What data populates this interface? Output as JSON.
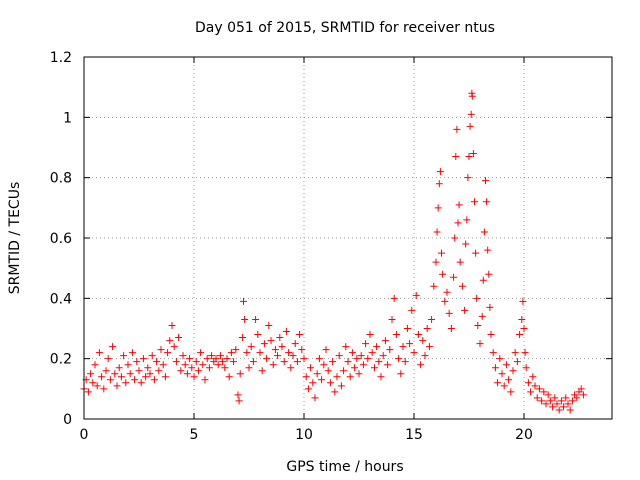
{
  "chart_data": {
    "type": "scatter",
    "title": "Day 051 of 2015, SRMTID for receiver ntus",
    "xlabel": "GPS time / hours",
    "ylabel": "SRMTID / TECUs",
    "xlim": [
      0,
      24
    ],
    "ylim": [
      0,
      1.2
    ],
    "xticks": [
      0,
      5,
      10,
      15,
      20
    ],
    "xtick_labels": [
      "0",
      "5",
      "10",
      "15",
      "20"
    ],
    "yticks": [
      0,
      0.2,
      0.4,
      0.6,
      0.8,
      1,
      1.2
    ],
    "ytick_labels": [
      "0",
      "0.2",
      "0.4",
      "0.6",
      "0.8",
      "1",
      "1.2"
    ],
    "grid": true,
    "marker": "+",
    "color": "#ff0000",
    "x_range_of_data": [
      0,
      22.7
    ],
    "series": [
      {
        "name": "SRMTID",
        "points": [
          [
            0.0,
            0.1
          ],
          [
            0.1,
            0.13
          ],
          [
            0.2,
            0.09
          ],
          [
            0.3,
            0.15
          ],
          [
            0.4,
            0.12
          ],
          [
            0.5,
            0.18
          ],
          [
            0.6,
            0.11
          ],
          [
            0.7,
            0.22
          ],
          [
            0.8,
            0.14
          ],
          [
            0.9,
            0.1
          ],
          [
            1.0,
            0.16
          ],
          [
            1.1,
            0.2
          ],
          [
            1.2,
            0.13
          ],
          [
            1.3,
            0.24
          ],
          [
            1.4,
            0.15
          ],
          [
            1.5,
            0.11
          ],
          [
            1.6,
            0.17
          ],
          [
            1.7,
            0.14
          ],
          [
            1.8,
            0.21
          ],
          [
            1.9,
            0.12
          ],
          [
            2.0,
            0.18
          ],
          [
            2.1,
            0.15
          ],
          [
            2.2,
            0.22
          ],
          [
            2.3,
            0.13
          ],
          [
            2.4,
            0.19
          ],
          [
            2.5,
            0.16
          ],
          [
            2.6,
            0.12
          ],
          [
            2.7,
            0.2
          ],
          [
            2.8,
            0.14
          ],
          [
            2.9,
            0.17
          ],
          [
            3.0,
            0.15
          ],
          [
            3.1,
            0.21
          ],
          [
            3.2,
            0.13
          ],
          [
            3.3,
            0.19
          ],
          [
            3.4,
            0.16
          ],
          [
            3.5,
            0.23
          ],
          [
            3.6,
            0.18
          ],
          [
            3.7,
            0.14
          ],
          [
            3.8,
            0.22
          ],
          [
            3.9,
            0.26
          ],
          [
            4.0,
            0.31
          ],
          [
            4.1,
            0.24
          ],
          [
            4.2,
            0.19
          ],
          [
            4.3,
            0.27
          ],
          [
            4.4,
            0.16
          ],
          [
            4.5,
            0.21
          ],
          [
            4.6,
            0.18
          ],
          [
            4.7,
            0.15
          ],
          [
            4.8,
            0.2
          ],
          [
            4.9,
            0.17
          ],
          [
            5.0,
            0.14
          ],
          [
            5.1,
            0.19
          ],
          [
            5.2,
            0.16
          ],
          [
            5.3,
            0.22
          ],
          [
            5.4,
            0.18
          ],
          [
            5.5,
            0.13
          ],
          [
            5.6,
            0.2
          ],
          [
            5.7,
            0.17
          ],
          [
            5.8,
            0.21
          ],
          [
            5.9,
            0.19
          ],
          [
            6.0,
            0.2
          ],
          [
            6.1,
            0.18
          ],
          [
            6.2,
            0.21
          ],
          [
            6.3,
            0.19
          ],
          [
            6.4,
            0.17
          ],
          [
            6.5,
            0.2
          ],
          [
            6.6,
            0.14
          ],
          [
            6.7,
            0.22
          ],
          [
            6.8,
            0.19
          ],
          [
            6.9,
            0.23
          ],
          [
            7.0,
            0.08
          ],
          [
            7.05,
            0.06
          ],
          [
            7.1,
            0.15
          ],
          [
            7.2,
            0.27
          ],
          [
            7.25,
            0.39
          ],
          [
            7.3,
            0.33
          ],
          [
            7.4,
            0.22
          ],
          [
            7.5,
            0.17
          ],
          [
            7.6,
            0.24
          ],
          [
            7.7,
            0.19
          ],
          [
            7.8,
            0.33
          ],
          [
            7.9,
            0.28
          ],
          [
            8.0,
            0.22
          ],
          [
            8.1,
            0.16
          ],
          [
            8.2,
            0.25
          ],
          [
            8.3,
            0.2
          ],
          [
            8.4,
            0.31
          ],
          [
            8.5,
            0.26
          ],
          [
            8.6,
            0.18
          ],
          [
            8.7,
            0.23
          ],
          [
            8.8,
            0.21
          ],
          [
            8.9,
            0.27
          ],
          [
            9.0,
            0.24
          ],
          [
            9.1,
            0.19
          ],
          [
            9.2,
            0.29
          ],
          [
            9.3,
            0.22
          ],
          [
            9.4,
            0.17
          ],
          [
            9.5,
            0.21
          ],
          [
            9.6,
            0.25
          ],
          [
            9.7,
            0.19
          ],
          [
            9.8,
            0.28
          ],
          [
            9.9,
            0.23
          ],
          [
            10.0,
            0.2
          ],
          [
            10.1,
            0.14
          ],
          [
            10.2,
            0.1
          ],
          [
            10.3,
            0.17
          ],
          [
            10.4,
            0.12
          ],
          [
            10.5,
            0.07
          ],
          [
            10.6,
            0.15
          ],
          [
            10.7,
            0.2
          ],
          [
            10.8,
            0.13
          ],
          [
            10.9,
            0.18
          ],
          [
            11.0,
            0.23
          ],
          [
            11.1,
            0.16
          ],
          [
            11.2,
            0.12
          ],
          [
            11.3,
            0.19
          ],
          [
            11.4,
            0.09
          ],
          [
            11.5,
            0.14
          ],
          [
            11.6,
            0.21
          ],
          [
            11.7,
            0.11
          ],
          [
            11.8,
            0.16
          ],
          [
            11.9,
            0.24
          ],
          [
            12.0,
            0.19
          ],
          [
            12.1,
            0.14
          ],
          [
            12.2,
            0.22
          ],
          [
            12.3,
            0.17
          ],
          [
            12.4,
            0.2
          ],
          [
            12.5,
            0.15
          ],
          [
            12.6,
            0.21
          ],
          [
            12.7,
            0.18
          ],
          [
            12.8,
            0.25
          ],
          [
            12.9,
            0.2
          ],
          [
            13.0,
            0.28
          ],
          [
            13.1,
            0.22
          ],
          [
            13.2,
            0.17
          ],
          [
            13.3,
            0.24
          ],
          [
            13.4,
            0.19
          ],
          [
            13.5,
            0.14
          ],
          [
            13.6,
            0.21
          ],
          [
            13.7,
            0.26
          ],
          [
            13.8,
            0.18
          ],
          [
            13.9,
            0.23
          ],
          [
            14.0,
            0.33
          ],
          [
            14.1,
            0.4
          ],
          [
            14.2,
            0.28
          ],
          [
            14.3,
            0.2
          ],
          [
            14.4,
            0.15
          ],
          [
            14.5,
            0.24
          ],
          [
            14.6,
            0.19
          ],
          [
            14.7,
            0.3
          ],
          [
            14.8,
            0.25
          ],
          [
            14.9,
            0.36
          ],
          [
            15.0,
            0.22
          ],
          [
            15.1,
            0.41
          ],
          [
            15.2,
            0.28
          ],
          [
            15.3,
            0.18
          ],
          [
            15.4,
            0.26
          ],
          [
            15.5,
            0.21
          ],
          [
            15.6,
            0.3
          ],
          [
            15.7,
            0.24
          ],
          [
            15.8,
            0.33
          ],
          [
            15.9,
            0.44
          ],
          [
            16.0,
            0.52
          ],
          [
            16.05,
            0.62
          ],
          [
            16.1,
            0.7
          ],
          [
            16.15,
            0.78
          ],
          [
            16.2,
            0.82
          ],
          [
            16.25,
            0.55
          ],
          [
            16.3,
            0.48
          ],
          [
            16.4,
            0.39
          ],
          [
            16.5,
            0.42
          ],
          [
            16.6,
            0.35
          ],
          [
            16.7,
            0.3
          ],
          [
            16.8,
            0.47
          ],
          [
            16.85,
            0.6
          ],
          [
            16.9,
            0.87
          ],
          [
            16.95,
            0.96
          ],
          [
            17.0,
            0.65
          ],
          [
            17.05,
            0.71
          ],
          [
            17.1,
            0.52
          ],
          [
            17.2,
            0.44
          ],
          [
            17.3,
            0.36
          ],
          [
            17.35,
            0.58
          ],
          [
            17.4,
            0.66
          ],
          [
            17.45,
            0.8
          ],
          [
            17.5,
            0.87
          ],
          [
            17.55,
            0.97
          ],
          [
            17.6,
            1.01
          ],
          [
            17.63,
            1.08
          ],
          [
            17.65,
            1.07
          ],
          [
            17.7,
            0.88
          ],
          [
            17.75,
            0.72
          ],
          [
            17.8,
            0.55
          ],
          [
            17.85,
            0.4
          ],
          [
            17.9,
            0.31
          ],
          [
            18.0,
            0.25
          ],
          [
            18.1,
            0.34
          ],
          [
            18.15,
            0.46
          ],
          [
            18.2,
            0.62
          ],
          [
            18.25,
            0.79
          ],
          [
            18.3,
            0.72
          ],
          [
            18.35,
            0.56
          ],
          [
            18.4,
            0.48
          ],
          [
            18.45,
            0.37
          ],
          [
            18.5,
            0.28
          ],
          [
            18.6,
            0.22
          ],
          [
            18.7,
            0.17
          ],
          [
            18.8,
            0.12
          ],
          [
            18.9,
            0.2
          ],
          [
            19.0,
            0.15
          ],
          [
            19.1,
            0.11
          ],
          [
            19.2,
            0.18
          ],
          [
            19.3,
            0.13
          ],
          [
            19.4,
            0.09
          ],
          [
            19.5,
            0.16
          ],
          [
            19.6,
            0.22
          ],
          [
            19.7,
            0.19
          ],
          [
            19.8,
            0.28
          ],
          [
            19.9,
            0.33
          ],
          [
            19.95,
            0.39
          ],
          [
            20.0,
            0.3
          ],
          [
            20.05,
            0.22
          ],
          [
            20.1,
            0.17
          ],
          [
            20.2,
            0.12
          ],
          [
            20.3,
            0.09
          ],
          [
            20.4,
            0.14
          ],
          [
            20.5,
            0.11
          ],
          [
            20.6,
            0.07
          ],
          [
            20.7,
            0.1
          ],
          [
            20.8,
            0.06
          ],
          [
            20.9,
            0.09
          ],
          [
            21.0,
            0.05
          ],
          [
            21.1,
            0.08
          ],
          [
            21.2,
            0.06
          ],
          [
            21.3,
            0.04
          ],
          [
            21.4,
            0.07
          ],
          [
            21.5,
            0.05
          ],
          [
            21.6,
            0.03
          ],
          [
            21.7,
            0.06
          ],
          [
            21.8,
            0.04
          ],
          [
            21.9,
            0.07
          ],
          [
            22.0,
            0.05
          ],
          [
            22.1,
            0.03
          ],
          [
            22.2,
            0.06
          ],
          [
            22.3,
            0.08
          ],
          [
            22.4,
            0.07
          ],
          [
            22.5,
            0.09
          ],
          [
            22.6,
            0.1
          ],
          [
            22.7,
            0.08
          ]
        ]
      }
    ]
  }
}
